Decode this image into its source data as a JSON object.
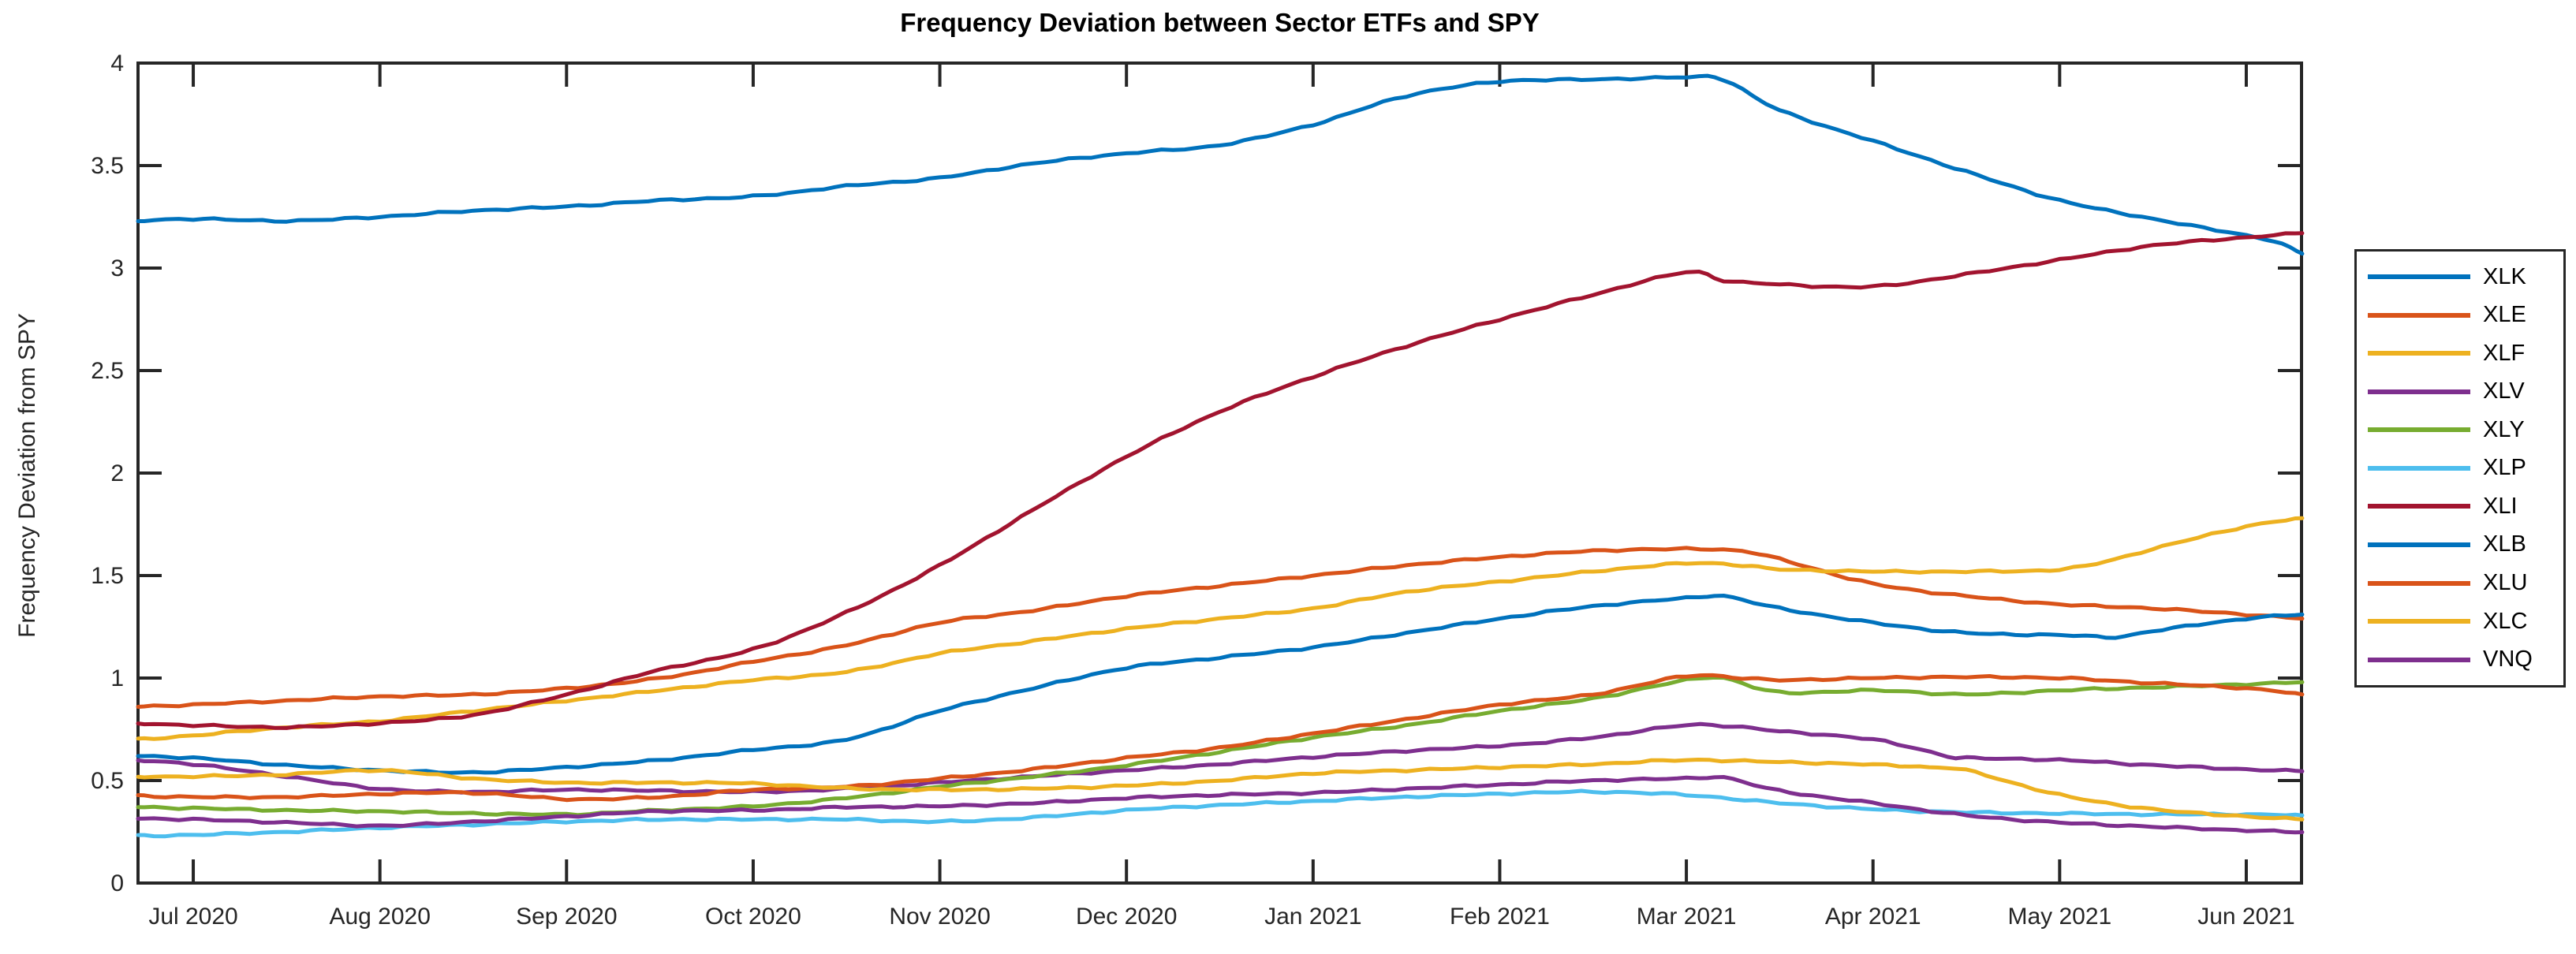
{
  "chart_data": {
    "type": "line",
    "title": "Frequency Deviation between Sector ETFs and SPY",
    "ylabel": "Frequency Deviation from SPY",
    "xlabel": "",
    "x_tick_labels": [
      "Jul 2020",
      "Aug 2020",
      "Sep 2020",
      "Oct 2020",
      "Nov 2020",
      "Dec 2020",
      "Jan 2021",
      "Feb 2021",
      "Mar 2021",
      "Apr 2021",
      "May 2021",
      "Jun 2021"
    ],
    "y_tick_labels": [
      "0",
      "0.5",
      "1",
      "1.5",
      "2",
      "2.5",
      "3",
      "3.5",
      "4"
    ],
    "y_ticks": [
      0,
      0.5,
      1,
      1.5,
      2,
      2.5,
      3,
      3.5,
      4
    ],
    "ylim": [
      0,
      4
    ],
    "xlim_months": [
      -0.296,
      11.296
    ],
    "grid": false,
    "legend_position": "outside-right",
    "axis_color": "#262626",
    "background_color": "#ffffff",
    "series": [
      {
        "name": "XLK",
        "color": "#0072BD",
        "points": [
          [
            -0.3,
            3.23
          ],
          [
            0,
            3.24
          ],
          [
            0.5,
            3.23
          ],
          [
            1,
            3.25
          ],
          [
            1.5,
            3.28
          ],
          [
            2,
            3.3
          ],
          [
            2.5,
            3.33
          ],
          [
            3,
            3.35
          ],
          [
            3.5,
            3.4
          ],
          [
            4,
            3.44
          ],
          [
            4.5,
            3.51
          ],
          [
            5,
            3.56
          ],
          [
            5.5,
            3.6
          ],
          [
            6,
            3.7
          ],
          [
            6.5,
            3.84
          ],
          [
            7,
            3.91
          ],
          [
            7.5,
            3.92
          ],
          [
            8,
            3.93
          ],
          [
            8.2,
            3.92
          ],
          [
            8.5,
            3.77
          ],
          [
            9,
            3.62
          ],
          [
            9.5,
            3.47
          ],
          [
            10,
            3.33
          ],
          [
            10.5,
            3.24
          ],
          [
            11,
            3.16
          ],
          [
            11.15,
            3.13
          ],
          [
            11.3,
            3.07
          ]
        ]
      },
      {
        "name": "XLE",
        "color": "#D95319",
        "points": [
          [
            -0.3,
            0.86
          ],
          [
            0,
            0.87
          ],
          [
            0.5,
            0.89
          ],
          [
            1,
            0.91
          ],
          [
            1.5,
            0.92
          ],
          [
            2,
            0.95
          ],
          [
            2.5,
            1.0
          ],
          [
            3,
            1.08
          ],
          [
            3.5,
            1.16
          ],
          [
            4,
            1.27
          ],
          [
            4.5,
            1.33
          ],
          [
            5,
            1.4
          ],
          [
            5.5,
            1.45
          ],
          [
            6,
            1.5
          ],
          [
            6.5,
            1.55
          ],
          [
            7,
            1.59
          ],
          [
            7.5,
            1.62
          ],
          [
            8,
            1.63
          ],
          [
            8.3,
            1.62
          ],
          [
            8.5,
            1.58
          ],
          [
            9,
            1.46
          ],
          [
            9.5,
            1.4
          ],
          [
            10,
            1.36
          ],
          [
            10.5,
            1.34
          ],
          [
            11,
            1.31
          ],
          [
            11.3,
            1.29
          ]
        ]
      },
      {
        "name": "XLF",
        "color": "#EDB120",
        "points": [
          [
            -0.3,
            0.7
          ],
          [
            0,
            0.72
          ],
          [
            0.5,
            0.76
          ],
          [
            1,
            0.79
          ],
          [
            1.5,
            0.84
          ],
          [
            2,
            0.89
          ],
          [
            2.5,
            0.94
          ],
          [
            3,
            0.99
          ],
          [
            3.5,
            1.03
          ],
          [
            4,
            1.12
          ],
          [
            4.5,
            1.18
          ],
          [
            5,
            1.24
          ],
          [
            5.5,
            1.29
          ],
          [
            6,
            1.34
          ],
          [
            6.5,
            1.42
          ],
          [
            7,
            1.47
          ],
          [
            7.5,
            1.52
          ],
          [
            8,
            1.56
          ],
          [
            8.3,
            1.55
          ],
          [
            8.5,
            1.53
          ],
          [
            9,
            1.52
          ],
          [
            9.5,
            1.52
          ],
          [
            10,
            1.53
          ],
          [
            10.3,
            1.58
          ],
          [
            10.5,
            1.63
          ],
          [
            11,
            1.74
          ],
          [
            11.3,
            1.78
          ]
        ]
      },
      {
        "name": "XLV",
        "color": "#7E2F8E",
        "points": [
          [
            -0.3,
            0.6
          ],
          [
            0,
            0.58
          ],
          [
            0.5,
            0.52
          ],
          [
            1,
            0.46
          ],
          [
            1.5,
            0.445
          ],
          [
            2,
            0.455
          ],
          [
            2.5,
            0.45
          ],
          [
            3,
            0.445
          ],
          [
            3.5,
            0.46
          ],
          [
            4,
            0.49
          ],
          [
            4.5,
            0.52
          ],
          [
            5,
            0.55
          ],
          [
            5.5,
            0.58
          ],
          [
            6,
            0.615
          ],
          [
            6.5,
            0.645
          ],
          [
            7,
            0.67
          ],
          [
            7.5,
            0.71
          ],
          [
            8,
            0.77
          ],
          [
            8.3,
            0.76
          ],
          [
            8.5,
            0.74
          ],
          [
            9,
            0.7
          ],
          [
            9.4,
            0.62
          ],
          [
            9.5,
            0.61
          ],
          [
            10,
            0.6
          ],
          [
            10.5,
            0.575
          ],
          [
            11,
            0.555
          ],
          [
            11.3,
            0.545
          ]
        ]
      },
      {
        "name": "XLY",
        "color": "#77AC30",
        "points": [
          [
            -0.3,
            0.37
          ],
          [
            0,
            0.365
          ],
          [
            0.5,
            0.355
          ],
          [
            1,
            0.35
          ],
          [
            1.5,
            0.34
          ],
          [
            2,
            0.335
          ],
          [
            2.5,
            0.355
          ],
          [
            3,
            0.375
          ],
          [
            3.5,
            0.415
          ],
          [
            4,
            0.47
          ],
          [
            4.5,
            0.52
          ],
          [
            5,
            0.575
          ],
          [
            5.5,
            0.64
          ],
          [
            6,
            0.71
          ],
          [
            6.5,
            0.77
          ],
          [
            7,
            0.84
          ],
          [
            7.5,
            0.9
          ],
          [
            8,
            0.99
          ],
          [
            8.2,
            1.0
          ],
          [
            8.5,
            0.93
          ],
          [
            9,
            0.94
          ],
          [
            9.5,
            0.92
          ],
          [
            10,
            0.94
          ],
          [
            10.5,
            0.955
          ],
          [
            11,
            0.97
          ],
          [
            11.3,
            0.98
          ]
        ]
      },
      {
        "name": "XLP",
        "color": "#4DBEEE",
        "points": [
          [
            -0.3,
            0.23
          ],
          [
            0,
            0.235
          ],
          [
            0.5,
            0.25
          ],
          [
            1,
            0.27
          ],
          [
            1.5,
            0.285
          ],
          [
            2,
            0.3
          ],
          [
            2.5,
            0.31
          ],
          [
            3,
            0.31
          ],
          [
            3.5,
            0.31
          ],
          [
            4,
            0.3
          ],
          [
            4.5,
            0.32
          ],
          [
            5,
            0.355
          ],
          [
            5.5,
            0.38
          ],
          [
            6,
            0.4
          ],
          [
            6.5,
            0.42
          ],
          [
            7,
            0.435
          ],
          [
            7.5,
            0.445
          ],
          [
            8,
            0.43
          ],
          [
            8.5,
            0.39
          ],
          [
            9,
            0.36
          ],
          [
            9.5,
            0.345
          ],
          [
            10,
            0.34
          ],
          [
            10.5,
            0.335
          ],
          [
            11,
            0.335
          ],
          [
            11.3,
            0.33
          ]
        ]
      },
      {
        "name": "XLI",
        "color": "#A2142F",
        "points": [
          [
            -0.3,
            0.78
          ],
          [
            0,
            0.77
          ],
          [
            0.5,
            0.76
          ],
          [
            1,
            0.78
          ],
          [
            1.5,
            0.82
          ],
          [
            2,
            0.92
          ],
          [
            2.5,
            1.04
          ],
          [
            3,
            1.14
          ],
          [
            3.5,
            1.32
          ],
          [
            4,
            1.55
          ],
          [
            4.5,
            1.82
          ],
          [
            5,
            2.08
          ],
          [
            5.5,
            2.3
          ],
          [
            6,
            2.47
          ],
          [
            6.5,
            2.62
          ],
          [
            7,
            2.75
          ],
          [
            7.5,
            2.87
          ],
          [
            8,
            2.98
          ],
          [
            8.2,
            2.94
          ],
          [
            8.5,
            2.92
          ],
          [
            9,
            2.91
          ],
          [
            9.5,
            2.97
          ],
          [
            10,
            3.04
          ],
          [
            10.5,
            3.11
          ],
          [
            11,
            3.15
          ],
          [
            11.3,
            3.17
          ]
        ]
      },
      {
        "name": "XLB",
        "color": "#0072BD",
        "points": [
          [
            -0.3,
            0.62
          ],
          [
            0,
            0.61
          ],
          [
            0.5,
            0.575
          ],
          [
            1,
            0.55
          ],
          [
            1.5,
            0.54
          ],
          [
            2,
            0.565
          ],
          [
            2.5,
            0.6
          ],
          [
            3,
            0.65
          ],
          [
            3.5,
            0.7
          ],
          [
            4,
            0.84
          ],
          [
            4.5,
            0.95
          ],
          [
            5,
            1.05
          ],
          [
            5.5,
            1.1
          ],
          [
            6,
            1.15
          ],
          [
            6.5,
            1.22
          ],
          [
            7,
            1.29
          ],
          [
            7.5,
            1.35
          ],
          [
            8,
            1.39
          ],
          [
            8.2,
            1.4
          ],
          [
            8.5,
            1.34
          ],
          [
            9,
            1.27
          ],
          [
            9.5,
            1.22
          ],
          [
            10,
            1.21
          ],
          [
            10.3,
            1.2
          ],
          [
            10.5,
            1.23
          ],
          [
            11,
            1.29
          ],
          [
            11.3,
            1.31
          ]
        ]
      },
      {
        "name": "XLU",
        "color": "#D95319",
        "points": [
          [
            -0.3,
            0.425
          ],
          [
            0,
            0.42
          ],
          [
            0.5,
            0.42
          ],
          [
            1,
            0.435
          ],
          [
            1.5,
            0.44
          ],
          [
            2,
            0.41
          ],
          [
            2.5,
            0.42
          ],
          [
            3,
            0.455
          ],
          [
            3.5,
            0.47
          ],
          [
            4,
            0.51
          ],
          [
            4.5,
            0.555
          ],
          [
            5,
            0.61
          ],
          [
            5.5,
            0.66
          ],
          [
            6,
            0.73
          ],
          [
            6.5,
            0.8
          ],
          [
            7,
            0.87
          ],
          [
            7.5,
            0.92
          ],
          [
            8,
            1.01
          ],
          [
            8.3,
            1.0
          ],
          [
            8.5,
            0.99
          ],
          [
            9,
            1.0
          ],
          [
            9.5,
            1.005
          ],
          [
            10,
            1.0
          ],
          [
            10.5,
            0.975
          ],
          [
            11,
            0.95
          ],
          [
            11.3,
            0.92
          ]
        ]
      },
      {
        "name": "XLC",
        "color": "#EDB120",
        "points": [
          [
            -0.3,
            0.52
          ],
          [
            0,
            0.52
          ],
          [
            0.5,
            0.53
          ],
          [
            1,
            0.55
          ],
          [
            1.5,
            0.51
          ],
          [
            2,
            0.49
          ],
          [
            2.5,
            0.49
          ],
          [
            3,
            0.485
          ],
          [
            3.5,
            0.462
          ],
          [
            4,
            0.455
          ],
          [
            4.5,
            0.46
          ],
          [
            5,
            0.475
          ],
          [
            5.5,
            0.5
          ],
          [
            6,
            0.535
          ],
          [
            6.5,
            0.55
          ],
          [
            7,
            0.565
          ],
          [
            7.5,
            0.58
          ],
          [
            8,
            0.6
          ],
          [
            8.5,
            0.59
          ],
          [
            9,
            0.578
          ],
          [
            9.3,
            0.565
          ],
          [
            9.5,
            0.55
          ],
          [
            10,
            0.43
          ],
          [
            10.5,
            0.36
          ],
          [
            11,
            0.325
          ],
          [
            11.3,
            0.31
          ]
        ]
      },
      {
        "name": "VNQ",
        "color": "#7E2F8E",
        "points": [
          [
            -0.3,
            0.315
          ],
          [
            0,
            0.31
          ],
          [
            0.5,
            0.295
          ],
          [
            1,
            0.28
          ],
          [
            1.5,
            0.3
          ],
          [
            2,
            0.325
          ],
          [
            2.5,
            0.35
          ],
          [
            3,
            0.355
          ],
          [
            3.5,
            0.37
          ],
          [
            4,
            0.375
          ],
          [
            4.5,
            0.39
          ],
          [
            5,
            0.415
          ],
          [
            5.5,
            0.43
          ],
          [
            6,
            0.44
          ],
          [
            6.5,
            0.46
          ],
          [
            7,
            0.48
          ],
          [
            7.5,
            0.5
          ],
          [
            8,
            0.51
          ],
          [
            8.2,
            0.515
          ],
          [
            8.5,
            0.45
          ],
          [
            9,
            0.39
          ],
          [
            9.5,
            0.33
          ],
          [
            10,
            0.295
          ],
          [
            10.5,
            0.275
          ],
          [
            11,
            0.257
          ],
          [
            11.3,
            0.248
          ]
        ]
      }
    ]
  }
}
